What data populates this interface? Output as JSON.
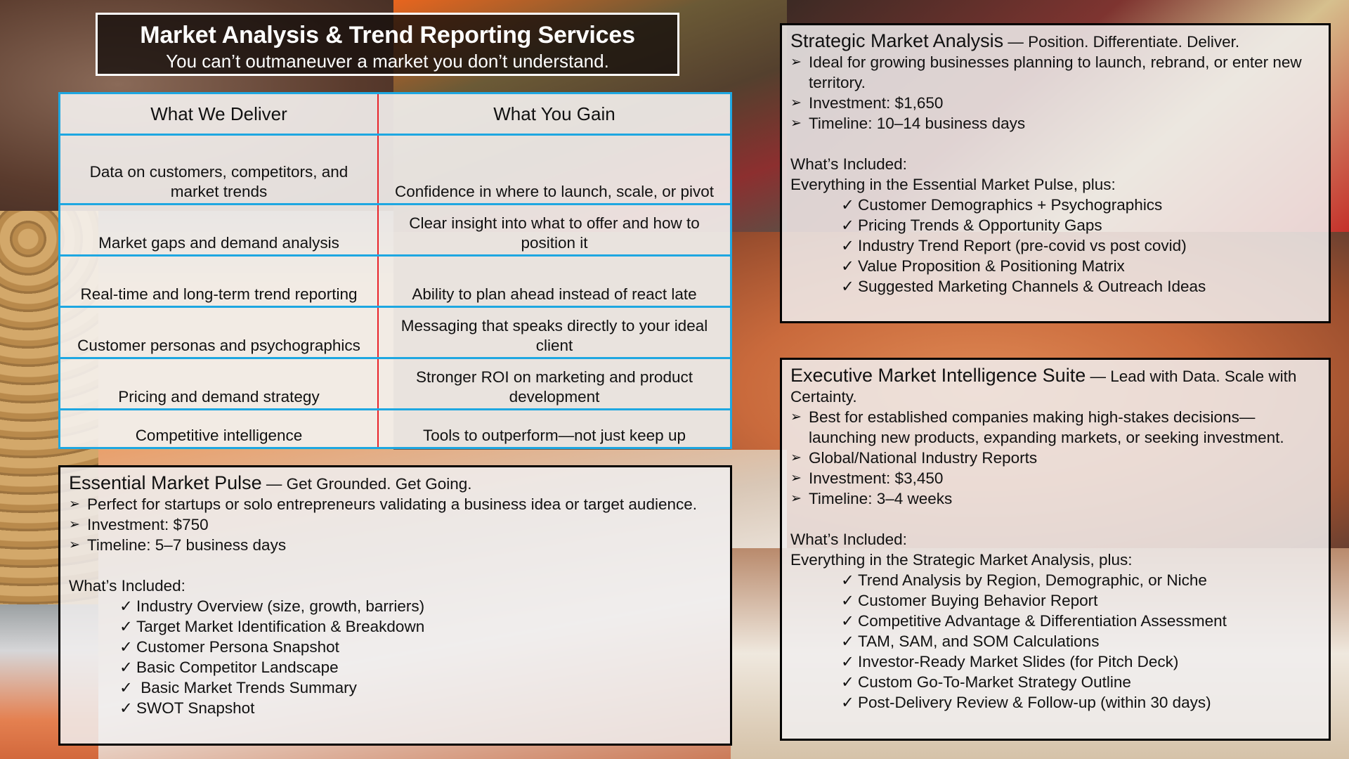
{
  "header": {
    "title": "Market Analysis & Trend Reporting Services",
    "subtitle": "You can’t outmaneuver a market you don’t understand."
  },
  "table": {
    "columns": [
      "What We Deliver",
      "What You Gain"
    ],
    "rows": [
      {
        "deliver": "Data on customers, competitors, and market trends",
        "gain": "Confidence in where to launch, scale, or pivot"
      },
      {
        "deliver": "Market gaps and demand analysis",
        "gain": "Clear insight into what to offer and how to position it"
      },
      {
        "deliver": "Real-time and long-term trend reporting",
        "gain": "Ability to plan ahead instead of react late"
      },
      {
        "deliver": "Customer personas and psychographics",
        "gain": "Messaging that speaks directly to your ideal client"
      },
      {
        "deliver": "Pricing and demand strategy",
        "gain": "Stronger ROI on marketing and product development"
      },
      {
        "deliver": "Competitive intelligence",
        "gain": "Tools to outperform—not just keep up"
      }
    ],
    "colors": {
      "grid": "#1ea7e1",
      "divider": "#e8232a"
    }
  },
  "packages": {
    "essential": {
      "name": "Essential Market Pulse",
      "tagline": " — Get Grounded. Get Going.",
      "bullets": [
        "Perfect for startups or solo entrepreneurs validating a business idea or target audience.",
        "Investment: $750",
        "Timeline: 5–7 business days"
      ],
      "included_label": "What’s Included:",
      "items": [
        "Industry Overview (size, growth, barriers)",
        "Target Market Identification & Breakdown",
        "Customer Persona Snapshot",
        "Basic Competitor Landscape",
        " Basic Market Trends Summary",
        "SWOT Snapshot"
      ]
    },
    "strategic": {
      "name": "Strategic Market Analysis",
      "tagline": " — Position. Differentiate. Deliver.",
      "bullets": [
        "Ideal for growing businesses planning to launch, rebrand, or enter new territory.",
        "Investment: $1,650",
        "Timeline: 10–14 business days"
      ],
      "included_label": "What’s Included:",
      "included_intro": "Everything in the Essential Market Pulse, plus:",
      "items": [
        "Customer Demographics + Psychographics",
        "Pricing Trends & Opportunity Gaps",
        "Industry Trend Report (pre-covid vs post covid)",
        "Value Proposition & Positioning Matrix",
        "Suggested Marketing Channels & Outreach Ideas"
      ]
    },
    "executive": {
      "name": "Executive Market Intelligence Suite",
      "tagline": " — Lead with Data. Scale with Certainty.",
      "bullets": [
        "Best for established companies making high-stakes decisions—launching new products, expanding markets, or seeking investment.",
        "Global/National Industry Reports",
        "Investment: $3,450",
        "Timeline: 3–4 weeks"
      ],
      "included_label": "What’s Included:",
      "included_intro": "Everything in the Strategic Market Analysis, plus:",
      "items": [
        "Trend Analysis by Region, Demographic, or Niche",
        "Customer Buying Behavior Report",
        "Competitive Advantage & Differentiation Assessment",
        "TAM, SAM, and SOM Calculations",
        "Investor-Ready Market Slides (for Pitch Deck)",
        "Custom Go-To-Market Strategy Outline",
        "Post-Delivery Review & Follow-up (within 30 days)"
      ]
    }
  },
  "icons": {
    "bullet": "➢",
    "check": "✓"
  }
}
